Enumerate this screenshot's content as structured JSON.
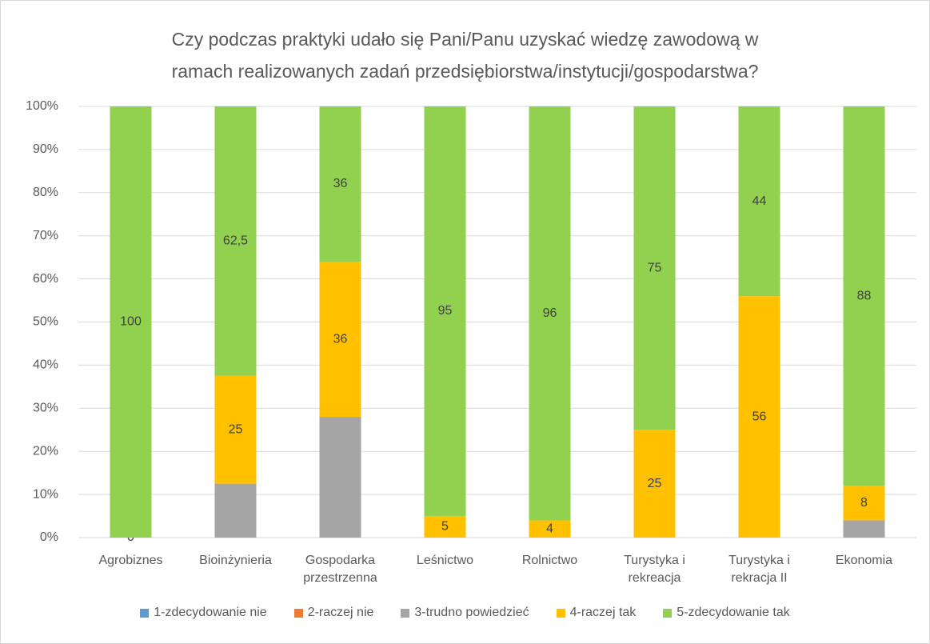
{
  "chart_data": {
    "type": "stacked_bar",
    "title": "Czy podczas praktyki udało się Pani/Panu uzyskać wiedzę zawodową w\nramach realizowanych zadań przedsiębiorstwa/instytucji/gospodarstwa?",
    "categories": [
      "Agrobiznes",
      "Bioinżynieria",
      "Gospodarka\nprzestrzenna",
      "Leśnictwo",
      "Rolnictwo",
      "Turystyka i\nrekreacja",
      "Turystyka i\nrekracja II",
      "Ekonomia"
    ],
    "series": [
      {
        "name": "1-zdecydowanie nie",
        "color": "#5b9bd5",
        "values": [
          0,
          0,
          0,
          0,
          0,
          0,
          0,
          0
        ]
      },
      {
        "name": "2-raczej nie",
        "color": "#ed7d31",
        "values": [
          0,
          0,
          0,
          0,
          0,
          0,
          0,
          0
        ]
      },
      {
        "name": "3-trudno powiedzieć",
        "color": "#a5a5a5",
        "values": [
          0,
          12.5,
          28,
          0,
          0,
          0,
          0,
          4
        ]
      },
      {
        "name": "4-raczej tak",
        "color": "#ffc000",
        "values": [
          0,
          25,
          36,
          5,
          4,
          25,
          56,
          8
        ],
        "labels": true
      },
      {
        "name": "5-zdecydowanie tak",
        "color": "#92d050",
        "values": [
          100,
          62.5,
          36,
          95,
          96,
          75,
          44,
          88
        ],
        "value_labels": [
          "100",
          "62,5",
          "36",
          "95",
          "96",
          "75",
          "44",
          "88"
        ],
        "labels": true
      }
    ],
    "ylim": [
      0,
      100
    ],
    "yticks": [
      {
        "value": 0,
        "label": "0%"
      },
      {
        "value": 10,
        "label": "10%"
      },
      {
        "value": 20,
        "label": "20%"
      },
      {
        "value": 30,
        "label": "30%"
      },
      {
        "value": 40,
        "label": "40%"
      },
      {
        "value": 50,
        "label": "50%"
      },
      {
        "value": 60,
        "label": "60%"
      },
      {
        "value": 70,
        "label": "70%"
      },
      {
        "value": 80,
        "label": "80%"
      },
      {
        "value": 90,
        "label": "90%"
      },
      {
        "value": 100,
        "label": "100%"
      }
    ],
    "grid": true,
    "legend": "bottom"
  }
}
